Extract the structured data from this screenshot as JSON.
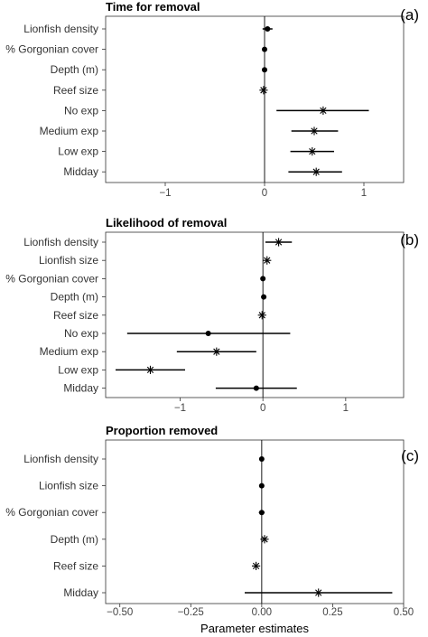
{
  "chart_data": [
    {
      "type": "forest",
      "title": "Time for removal",
      "panel_label": "(a)",
      "categories": [
        "Lionfish density",
        "% Gorgonian cover",
        "Depth (m)",
        "Reef size",
        "No exp",
        "Medium exp",
        "Low exp",
        "Midday"
      ],
      "estimates": [
        0.03,
        0.0,
        0.0,
        -0.01,
        0.59,
        0.5,
        0.48,
        0.52
      ],
      "ci_low": [
        -0.02,
        null,
        null,
        null,
        0.12,
        0.27,
        0.26,
        0.24
      ],
      "ci_high": [
        0.08,
        null,
        null,
        null,
        1.05,
        0.74,
        0.7,
        0.78
      ],
      "markers": [
        "dot",
        "dot",
        "dot",
        "star",
        "star",
        "star",
        "star",
        "star"
      ],
      "xlim": [
        -1.6,
        1.4
      ],
      "xticks": [
        -1,
        0,
        1
      ],
      "xtick_labels": [
        "−1",
        "0",
        "1"
      ],
      "reference_line": 0
    },
    {
      "type": "forest",
      "title": "Likelihood of removal",
      "panel_label": "(b)",
      "categories": [
        "Lionfish density",
        "Lionfish size",
        "% Gorgonian cover",
        "Depth (m)",
        "Reef size",
        "No exp",
        "Medium exp",
        "Low exp",
        "Midday"
      ],
      "estimates": [
        0.19,
        0.05,
        0.0,
        0.01,
        -0.01,
        -0.66,
        -0.56,
        -1.36,
        -0.08
      ],
      "ci_low": [
        0.03,
        null,
        null,
        null,
        null,
        -1.64,
        -1.04,
        -1.78,
        -0.57
      ],
      "ci_high": [
        0.35,
        null,
        null,
        null,
        null,
        0.33,
        -0.08,
        -0.94,
        0.41
      ],
      "markers": [
        "star",
        "star",
        "dot",
        "dot",
        "star",
        "dot",
        "star",
        "star",
        "dot"
      ],
      "xlim": [
        -1.9,
        1.7
      ],
      "xticks": [
        -1,
        0,
        1
      ],
      "xtick_labels": [
        "−1",
        "0",
        "1"
      ],
      "reference_line": 0
    },
    {
      "type": "forest",
      "title": "Proportion removed",
      "panel_label": "(c)",
      "categories": [
        "Lionfish density",
        "Lionfish size",
        "% Gorgonian cover",
        "Depth (m)",
        "Reef size",
        "Midday"
      ],
      "estimates": [
        0.0,
        0.0,
        0.0,
        0.01,
        -0.02,
        0.2
      ],
      "ci_low": [
        null,
        null,
        -0.01,
        null,
        null,
        -0.06
      ],
      "ci_high": [
        null,
        null,
        0.01,
        null,
        null,
        0.46
      ],
      "markers": [
        "dot",
        "dot",
        "dot",
        "star",
        "star",
        "star"
      ],
      "xlim": [
        -0.55,
        0.5
      ],
      "xticks": [
        -0.5,
        -0.25,
        0.0,
        0.25,
        0.5
      ],
      "xtick_labels": [
        "−0.50",
        "−0.25",
        "0.00",
        "0.25",
        "0.50"
      ],
      "xlabel": "Parameter estimates",
      "reference_line": 0
    }
  ]
}
